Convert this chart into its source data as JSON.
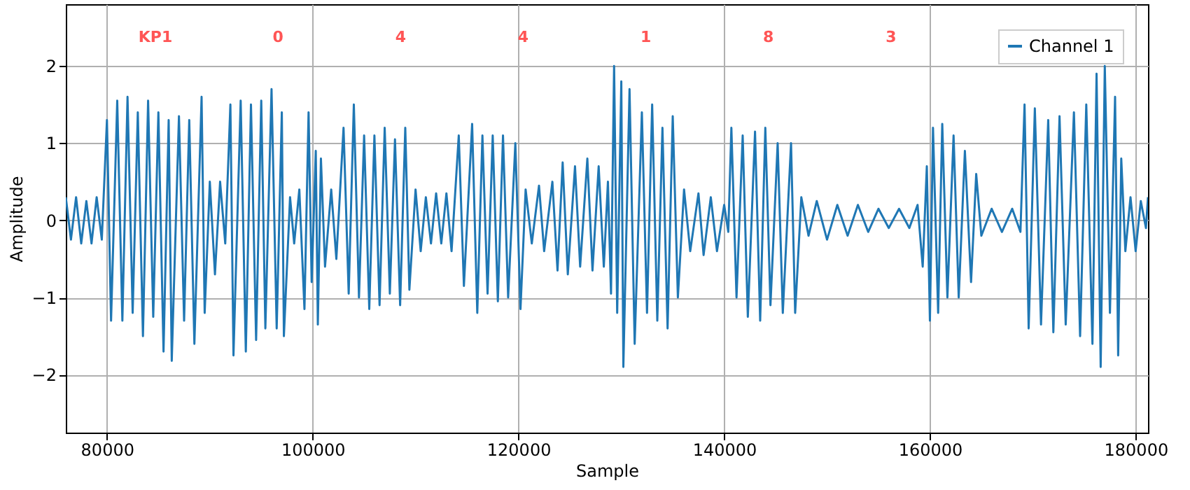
{
  "chart_data": {
    "type": "line",
    "xlabel": "Sample",
    "ylabel": "Amplitude",
    "xlim": [
      76000,
      181200
    ],
    "xticks": [
      80000,
      100000,
      120000,
      140000,
      160000,
      180000
    ],
    "ylim": [
      -2.75,
      2.8
    ],
    "yticks": [
      -2,
      -1,
      0,
      1,
      2
    ],
    "grid": true,
    "legend": "top right",
    "x": [
      76000,
      76500,
      77000,
      77500,
      78000,
      78500,
      79000,
      79500,
      80000,
      80400,
      81000,
      81500,
      82000,
      82500,
      83000,
      83500,
      84000,
      84500,
      85000,
      85500,
      86000,
      86300,
      87000,
      87500,
      88000,
      88500,
      89200,
      89500,
      90000,
      90500,
      91000,
      91500,
      92000,
      92300,
      93000,
      93500,
      94000,
      94500,
      95000,
      95400,
      96000,
      96500,
      97000,
      97200,
      97800,
      98200,
      98700,
      99200,
      99600,
      99900,
      100300,
      100500,
      100800,
      101200,
      101800,
      102300,
      103000,
      103500,
      104000,
      104500,
      105000,
      105500,
      106000,
      106500,
      107000,
      107500,
      108000,
      108500,
      109000,
      109400,
      110000,
      110500,
      111000,
      111500,
      112000,
      112500,
      113000,
      113500,
      114200,
      114700,
      115500,
      116000,
      116500,
      117000,
      117500,
      118000,
      118500,
      119000,
      119700,
      120200,
      120700,
      121300,
      122000,
      122500,
      123300,
      123800,
      124300,
      124800,
      125500,
      126000,
      126700,
      127200,
      127800,
      128300,
      128700,
      129000,
      129300,
      129600,
      130000,
      130200,
      130800,
      131300,
      132000,
      132500,
      133000,
      133500,
      134000,
      134500,
      135000,
      135500,
      136100,
      136700,
      137500,
      138000,
      138700,
      139300,
      140000,
      140400,
      140700,
      141200,
      141800,
      142300,
      143000,
      143500,
      144000,
      144500,
      145200,
      145700,
      146500,
      146900,
      147500,
      148200,
      149000,
      150000,
      151000,
      152000,
      153000,
      154000,
      155000,
      156000,
      157000,
      158000,
      158800,
      159300,
      159700,
      160000,
      160300,
      160800,
      161200,
      161700,
      162300,
      162800,
      163400,
      164000,
      164500,
      165000,
      166000,
      167000,
      168000,
      168800,
      169200,
      169600,
      170200,
      170800,
      171500,
      172000,
      172600,
      173200,
      174000,
      174600,
      175200,
      175800,
      176200,
      176600,
      177000,
      177500,
      178000,
      178300,
      178600,
      179000,
      179500,
      180000,
      180500,
      181000,
      181200
    ],
    "series": [
      {
        "name": "Channel 1",
        "color": "#1f77b4",
        "values": [
          0.3,
          -0.25,
          0.3,
          -0.3,
          0.25,
          -0.3,
          0.3,
          -0.25,
          1.3,
          -1.3,
          1.55,
          -1.3,
          1.6,
          -1.2,
          1.4,
          -1.5,
          1.55,
          -1.25,
          1.4,
          -1.7,
          1.3,
          -1.82,
          1.35,
          -1.3,
          1.3,
          -1.6,
          1.6,
          -1.2,
          0.5,
          -0.7,
          0.5,
          -0.3,
          1.5,
          -1.75,
          1.55,
          -1.7,
          1.5,
          -1.55,
          1.55,
          -1.4,
          1.7,
          -1.4,
          1.4,
          -1.5,
          0.3,
          -0.3,
          0.4,
          -1.15,
          1.4,
          -0.8,
          0.9,
          -1.35,
          0.8,
          -0.6,
          0.4,
          -0.5,
          1.2,
          -0.95,
          1.5,
          -1.0,
          1.1,
          -1.15,
          1.1,
          -1.1,
          1.2,
          -0.95,
          1.05,
          -1.1,
          1.2,
          -0.9,
          0.4,
          -0.4,
          0.3,
          -0.3,
          0.35,
          -0.3,
          0.35,
          -0.4,
          1.1,
          -0.85,
          1.25,
          -1.2,
          1.1,
          -0.95,
          1.1,
          -1.05,
          1.1,
          -1.0,
          1.0,
          -1.15,
          0.4,
          -0.3,
          0.45,
          -0.4,
          0.5,
          -0.65,
          0.75,
          -0.7,
          0.7,
          -0.6,
          0.8,
          -0.65,
          0.7,
          -0.6,
          0.5,
          -0.95,
          2.0,
          -1.2,
          1.8,
          -1.9,
          1.7,
          -1.6,
          1.4,
          -1.2,
          1.5,
          -1.3,
          1.2,
          -1.4,
          1.35,
          -1.0,
          0.4,
          -0.4,
          0.35,
          -0.45,
          0.3,
          -0.4,
          0.2,
          -0.15,
          1.2,
          -1.0,
          1.1,
          -1.25,
          1.15,
          -1.3,
          1.2,
          -1.1,
          1.0,
          -1.2,
          1.0,
          -1.2,
          0.3,
          -0.2,
          0.25,
          -0.25,
          0.2,
          -0.2,
          0.2,
          -0.15,
          0.15,
          -0.1,
          0.15,
          -0.1,
          0.2,
          -0.6,
          0.7,
          -1.3,
          1.2,
          -1.2,
          1.25,
          -1.0,
          1.1,
          -1.0,
          0.9,
          -0.8,
          0.6,
          -0.2,
          0.15,
          -0.15,
          0.15,
          -0.15,
          1.5,
          -1.4,
          1.45,
          -1.35,
          1.3,
          -1.45,
          1.35,
          -1.35,
          1.4,
          -1.5,
          1.5,
          -1.6,
          1.9,
          -1.9,
          2.0,
          -1.2,
          1.6,
          -1.75,
          0.8,
          -0.4,
          0.3,
          -0.4,
          0.25,
          -0.1,
          0.3
        ]
      }
    ],
    "annotations": [
      "KP1",
      "0",
      "4",
      "4",
      "1",
      "8",
      "3",
      "1"
    ]
  }
}
